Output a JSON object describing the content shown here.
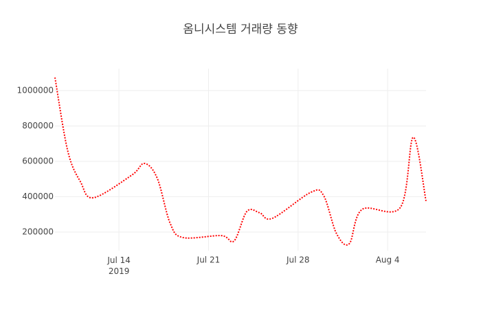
{
  "chart_data": {
    "type": "line",
    "title": "옴니시스템 거래량 동향",
    "x": [
      "2019-07-09",
      "2019-07-10",
      "2019-07-11",
      "2019-07-12",
      "2019-07-15",
      "2019-07-16",
      "2019-07-17",
      "2019-07-18",
      "2019-07-19",
      "2019-07-22",
      "2019-07-23",
      "2019-07-24",
      "2019-07-25",
      "2019-07-26",
      "2019-07-29",
      "2019-07-30",
      "2019-07-31",
      "2019-08-01",
      "2019-08-02",
      "2019-08-05",
      "2019-08-06",
      "2019-08-07"
    ],
    "series": [
      {
        "name": "거래량",
        "color": "#ff0000",
        "values": [
          1074000,
          658000,
          483000,
          394000,
          522000,
          588000,
          503000,
          250000,
          169000,
          180000,
          150000,
          317000,
          309000,
          278000,
          425000,
          406000,
          192000,
          134000,
          328000,
          340000,
          736000,
          375000
        ]
      }
    ],
    "xlim": [
      "2019-07-09",
      "2019-08-07"
    ],
    "xticks": [
      {
        "value": "2019-07-14",
        "label": "Jul 14\n2019"
      },
      {
        "value": "2019-07-21",
        "label": "Jul 21"
      },
      {
        "value": "2019-07-28",
        "label": "Jul 28"
      },
      {
        "value": "2019-08-04",
        "label": "Aug 4"
      }
    ],
    "ylim": [
      95000,
      1124000
    ],
    "yticks": [
      200000,
      400000,
      600000,
      800000,
      1000000
    ],
    "grid": true,
    "line_style": "dotted",
    "smooth": true
  }
}
